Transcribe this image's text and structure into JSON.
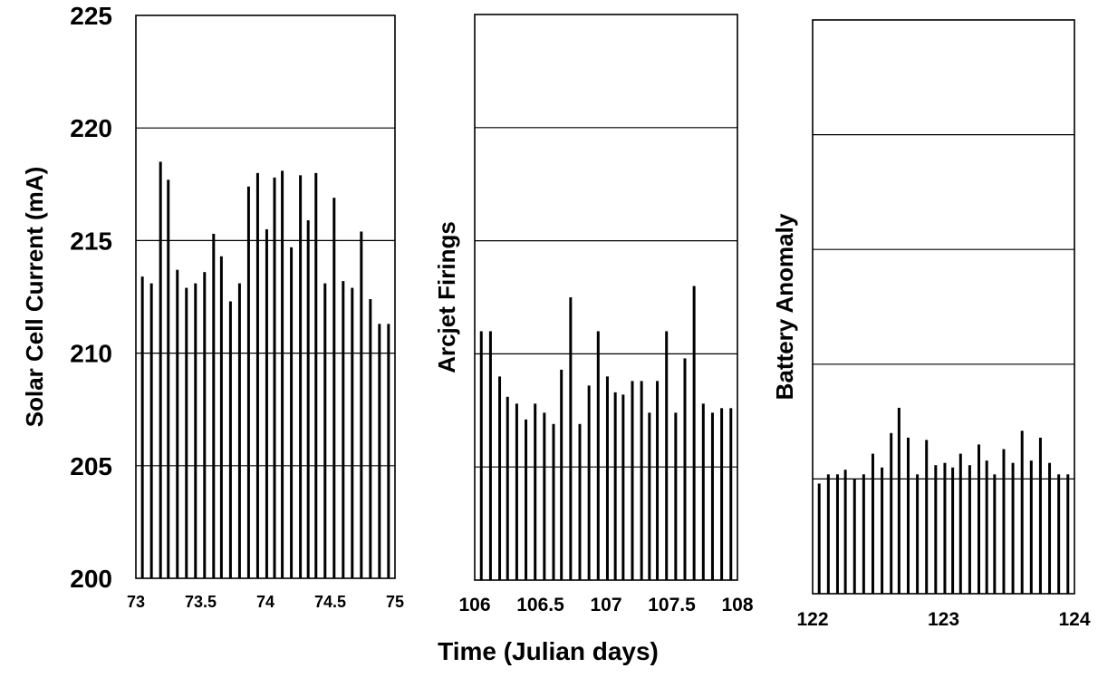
{
  "chart_data": {
    "xlabel": "Time (Julian days)",
    "panels": [
      {
        "type": "bar",
        "ylabel": "Solar Cell Current (mA)",
        "ylim": [
          200,
          225
        ],
        "yticks": [
          "200",
          "205",
          "210",
          "215",
          "220",
          "225"
        ],
        "xlim": [
          73,
          75
        ],
        "xticks": [
          "73",
          "73.5",
          "74",
          "74.5",
          "75"
        ],
        "grid": "horizontal",
        "x": [
          73.05,
          73.12,
          73.19,
          73.25,
          73.32,
          73.39,
          73.46,
          73.53,
          73.6,
          73.66,
          73.73,
          73.8,
          73.87,
          73.94,
          74.01,
          74.07,
          74.13,
          74.2,
          74.27,
          74.33,
          74.39,
          74.46,
          74.53,
          74.6,
          74.67,
          74.74,
          74.81,
          74.88,
          74.95
        ],
        "values": [
          213.4,
          213.1,
          218.5,
          217.7,
          213.7,
          212.9,
          213.1,
          213.6,
          215.3,
          214.3,
          212.3,
          213.1,
          217.4,
          218.0,
          215.5,
          217.8,
          218.1,
          214.7,
          217.9,
          215.9,
          218.0,
          213.1,
          216.9,
          213.2,
          212.9,
          215.4,
          212.4,
          211.3,
          211.3
        ]
      },
      {
        "type": "bar",
        "ylabel": "Arcjet Firings",
        "ylim": [
          200,
          225
        ],
        "yticks": [],
        "xlim": [
          106,
          108
        ],
        "xticks": [
          "106",
          "106.5",
          "107",
          "107.5",
          "108"
        ],
        "grid": "horizontal",
        "x": [
          106.05,
          106.12,
          106.19,
          106.25,
          106.32,
          106.39,
          106.46,
          106.53,
          106.6,
          106.66,
          106.73,
          106.8,
          106.87,
          106.94,
          107.01,
          107.07,
          107.13,
          107.2,
          107.27,
          107.33,
          107.39,
          107.46,
          107.53,
          107.6,
          107.67,
          107.74,
          107.81,
          107.88,
          107.95
        ],
        "values": [
          211.0,
          211.0,
          209.0,
          208.1,
          207.8,
          207.1,
          207.8,
          207.4,
          206.9,
          209.3,
          212.5,
          206.9,
          208.6,
          211.0,
          209.0,
          208.3,
          208.2,
          208.8,
          208.8,
          207.4,
          208.8,
          211.0,
          207.4,
          209.8,
          213.0,
          207.8,
          207.4,
          207.6,
          207.6
        ]
      },
      {
        "type": "bar",
        "ylabel": "Battery Anomaly",
        "ylim": [
          200,
          225
        ],
        "yticks": [],
        "xlim": [
          122,
          124
        ],
        "xticks": [
          "122",
          "123",
          "124"
        ],
        "grid": "horizontal",
        "x": [
          122.05,
          122.12,
          122.19,
          122.25,
          122.32,
          122.39,
          122.46,
          122.53,
          122.6,
          122.66,
          122.73,
          122.8,
          122.87,
          122.94,
          123.01,
          123.07,
          123.13,
          123.2,
          123.27,
          123.33,
          123.39,
          123.46,
          123.53,
          123.6,
          123.67,
          123.74,
          123.81,
          123.88,
          123.95
        ],
        "values": [
          204.8,
          205.2,
          205.2,
          205.4,
          205.0,
          205.2,
          206.1,
          205.5,
          207.0,
          208.1,
          206.8,
          205.2,
          206.7,
          205.6,
          205.7,
          205.5,
          206.1,
          205.6,
          206.5,
          205.8,
          205.2,
          206.3,
          205.7,
          207.1,
          205.8,
          206.8,
          205.7,
          205.2,
          205.2
        ]
      }
    ]
  }
}
